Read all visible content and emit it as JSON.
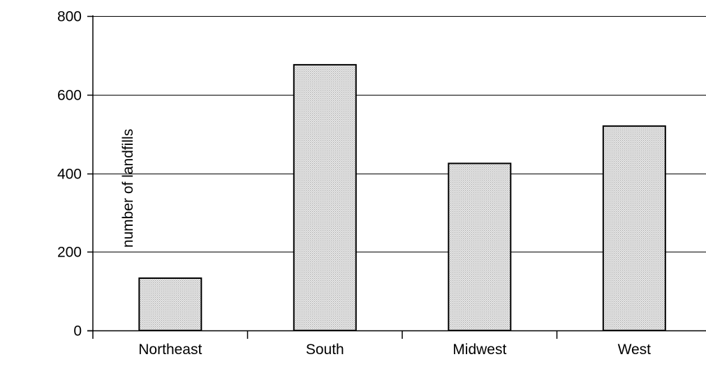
{
  "chart_data": {
    "type": "bar",
    "title": "",
    "xlabel": "",
    "ylabel": "number of landfills",
    "categories": [
      "Northeast",
      "South",
      "Midwest",
      "West"
    ],
    "values": [
      133,
      676,
      425,
      520
    ],
    "ylim": [
      0,
      800
    ],
    "yticks": [
      "0",
      "200",
      "400",
      "600",
      "800"
    ],
    "grid": true,
    "legend": "none",
    "colors": {
      "bar_fill": "#e6e6e6",
      "bar_dots": "#a6a6a6",
      "bar_stroke": "#000000",
      "grid": "#000000"
    }
  }
}
